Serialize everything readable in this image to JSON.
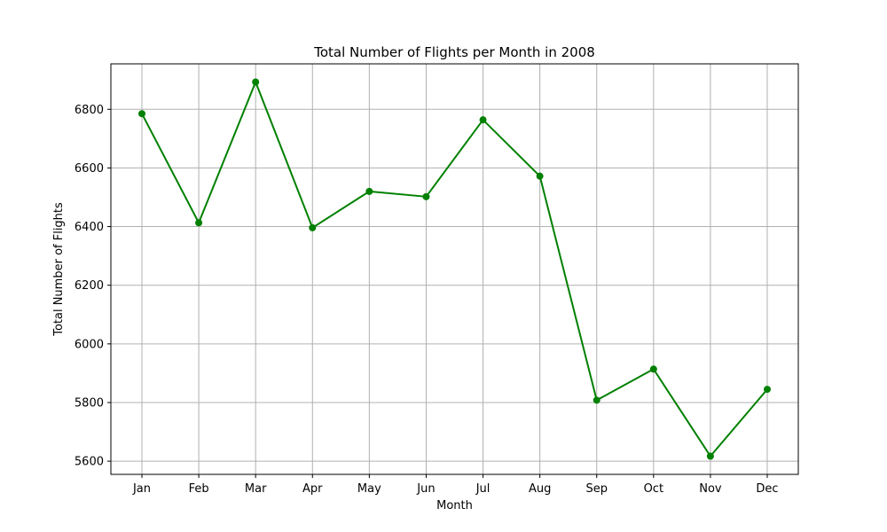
{
  "chart_data": {
    "type": "line",
    "title": "Total Number of Flights per Month in 2008",
    "xlabel": "Month",
    "ylabel": "Total Number of Flights",
    "categories": [
      "Jan",
      "Feb",
      "Mar",
      "Apr",
      "May",
      "Jun",
      "Jul",
      "Aug",
      "Sep",
      "Oct",
      "Nov",
      "Dec"
    ],
    "series": [
      {
        "values": [
          6785,
          6413,
          6893,
          6396,
          6520,
          6502,
          6764,
          6572,
          5808,
          5914,
          5617,
          5845
        ],
        "color": "#008000",
        "marker": "circle"
      }
    ],
    "ylim": [
      5555,
      6955
    ],
    "yticks": [
      5600,
      5800,
      6000,
      6200,
      6400,
      6600,
      6800
    ],
    "grid": true,
    "grid_color": "#b0b0b0"
  }
}
